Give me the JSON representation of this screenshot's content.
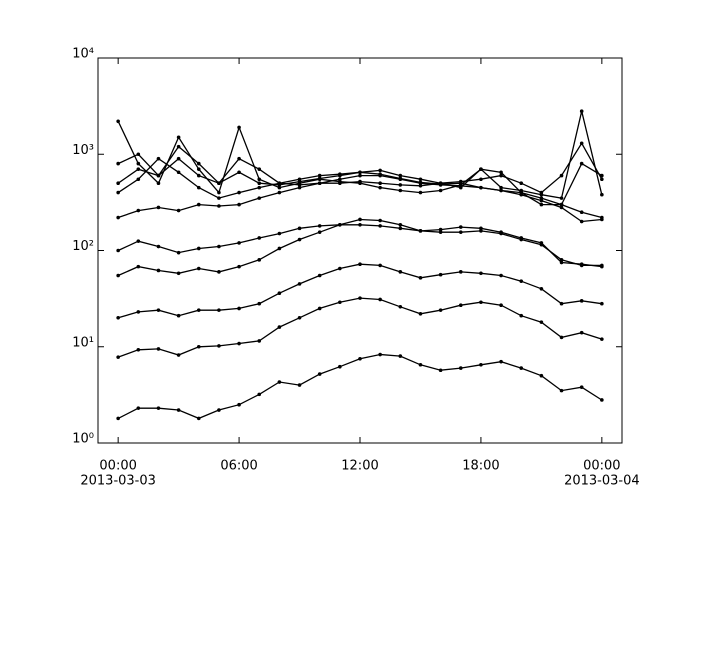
{
  "chart_data": {
    "type": "line",
    "log_y": true,
    "color": "#000000",
    "xlim": [
      "2013-03-02T23:00",
      "2013-03-04T01:00"
    ],
    "xticks": [
      {
        "value": "2013-03-03T00:00",
        "label": [
          "00:00",
          "2013-03-03"
        ]
      },
      {
        "value": "2013-03-03T06:00",
        "label": "06:00"
      },
      {
        "value": "2013-03-03T12:00",
        "label": "12:00"
      },
      {
        "value": "2013-03-03T18:00",
        "label": "18:00"
      },
      {
        "value": "2013-03-04T00:00",
        "label": [
          "00:00",
          "2013-03-04"
        ]
      }
    ],
    "ylim": [
      1,
      10000
    ],
    "yticks": [
      {
        "value": 1,
        "label": "10⁰"
      },
      {
        "value": 10,
        "label": "10¹"
      },
      {
        "value": 100,
        "label": "10²"
      },
      {
        "value": 1000,
        "label": "10³"
      },
      {
        "value": 10000,
        "label": "10⁴"
      }
    ],
    "x": [
      "2013-03-03T00:00",
      "2013-03-03T01:00",
      "2013-03-03T02:00",
      "2013-03-03T03:00",
      "2013-03-03T04:00",
      "2013-03-03T05:00",
      "2013-03-03T06:00",
      "2013-03-03T07:00",
      "2013-03-03T08:00",
      "2013-03-03T09:00",
      "2013-03-03T10:00",
      "2013-03-03T11:00",
      "2013-03-03T12:00",
      "2013-03-03T13:00",
      "2013-03-03T14:00",
      "2013-03-03T15:00",
      "2013-03-03T16:00",
      "2013-03-03T17:00",
      "2013-03-03T18:00",
      "2013-03-03T19:00",
      "2013-03-03T20:00",
      "2013-03-03T21:00",
      "2013-03-03T22:00",
      "2013-03-03T23:00",
      "2013-03-04T00:00"
    ],
    "series": [
      {
        "values": [
          1.8,
          2.3,
          2.3,
          2.2,
          1.8,
          2.2,
          2.5,
          3.2,
          4.3,
          4.0,
          5.2,
          6.2,
          7.5,
          8.3,
          8.0,
          6.5,
          5.7,
          6.0,
          6.5,
          7.0,
          6.0,
          5.0,
          3.5,
          3.8,
          2.8
        ]
      },
      {
        "values": [
          7.8,
          9.3,
          9.5,
          8.2,
          10,
          10.2,
          10.8,
          11.5,
          16,
          20,
          25,
          29,
          32,
          31,
          26,
          22,
          24,
          27,
          29,
          27,
          21,
          18,
          12.5,
          14,
          12
        ]
      },
      {
        "values": [
          20,
          23,
          24,
          21,
          24,
          24,
          25,
          28,
          36,
          45,
          55,
          65,
          72,
          70,
          60,
          52,
          56,
          60,
          58,
          55,
          48,
          40,
          28,
          30,
          28
        ]
      },
      {
        "values": [
          55,
          68,
          62,
          58,
          65,
          60,
          68,
          80,
          105,
          130,
          155,
          185,
          210,
          205,
          185,
          160,
          165,
          175,
          170,
          155,
          135,
          120,
          75,
          72,
          68
        ]
      },
      {
        "values": [
          100,
          125,
          110,
          95,
          105,
          110,
          120,
          135,
          150,
          170,
          180,
          185,
          185,
          180,
          170,
          160,
          155,
          155,
          160,
          150,
          130,
          115,
          80,
          70,
          70
        ]
      },
      {
        "values": [
          220,
          260,
          280,
          260,
          300,
          290,
          300,
          350,
          400,
          450,
          500,
          550,
          600,
          600,
          550,
          500,
          480,
          470,
          450,
          420,
          380,
          330,
          280,
          200,
          210
        ]
      },
      {
        "values": [
          500,
          700,
          600,
          900,
          600,
          500,
          650,
          500,
          480,
          520,
          560,
          600,
          650,
          620,
          560,
          510,
          490,
          500,
          450,
          420,
          400,
          350,
          300,
          250,
          220
        ]
      },
      {
        "values": [
          2200,
          800,
          500,
          1500,
          700,
          400,
          1900,
          550,
          450,
          500,
          550,
          520,
          500,
          450,
          420,
          400,
          420,
          480,
          700,
          450,
          420,
          380,
          350,
          2800,
          380
        ]
      },
      {
        "values": [
          800,
          1000,
          600,
          1200,
          800,
          500,
          900,
          700,
          500,
          480,
          500,
          500,
          520,
          500,
          480,
          470,
          500,
          520,
          550,
          600,
          500,
          400,
          600,
          1300,
          550
        ]
      },
      {
        "values": [
          400,
          550,
          900,
          650,
          450,
          350,
          400,
          450,
          500,
          550,
          600,
          620,
          650,
          680,
          600,
          550,
          500,
          450,
          700,
          650,
          400,
          300,
          300,
          800,
          600
        ]
      }
    ]
  }
}
